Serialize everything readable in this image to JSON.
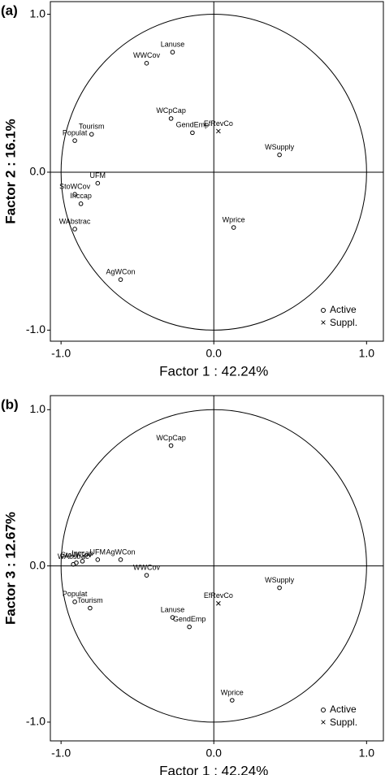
{
  "chart_data": [
    {
      "type": "scatter",
      "panel": "(a)",
      "x_label": "Factor 1 : 42.24%",
      "y_label": "Factor 2 : 16.1%",
      "xlim": [
        -1.07,
        1.11
      ],
      "ylim": [
        -1.07,
        1.08
      ],
      "xticks": [
        {
          "value": -1,
          "label": "-1.0"
        },
        {
          "value": 0,
          "label": "0.0"
        },
        {
          "value": 1,
          "label": "1.0"
        }
      ],
      "yticks": [
        {
          "value": -1,
          "label": "-1.0"
        },
        {
          "value": 0,
          "label": "0.0"
        },
        {
          "value": 1,
          "label": "1.0"
        }
      ],
      "series": [
        {
          "name": "Active",
          "marker": "o",
          "color": "#000000",
          "labels": [
            "Lanuse",
            "WWCov",
            "WCpCap",
            "GendEmp",
            "WSupply",
            "Tourism",
            "Populat",
            "UFM",
            "StoWCov",
            "Inccap",
            "WAbstrac",
            "Wprice",
            "AgWCon"
          ],
          "x": [
            -0.27,
            -0.44,
            -0.28,
            -0.14,
            0.43,
            -0.8,
            -0.91,
            -0.76,
            -0.91,
            -0.87,
            -0.91,
            0.13,
            -0.61
          ],
          "y": [
            0.76,
            0.69,
            0.34,
            0.25,
            0.11,
            0.24,
            0.2,
            -0.07,
            -0.14,
            -0.2,
            -0.36,
            -0.35,
            -0.68
          ]
        },
        {
          "name": "Suppl.",
          "marker": "x",
          "color": "#000000",
          "labels": [
            "EfRevCo"
          ],
          "x": [
            0.03
          ],
          "y": [
            0.26
          ]
        }
      ]
    },
    {
      "type": "scatter",
      "panel": "(b)",
      "x_label": "Factor 1 : 42.24%",
      "y_label": "Factor 3 : 12.67%",
      "xlim": [
        -1.07,
        1.11
      ],
      "ylim": [
        -1.12,
        1.09
      ],
      "xticks": [
        {
          "value": -1,
          "label": "-1.0"
        },
        {
          "value": 0,
          "label": "0.0"
        },
        {
          "value": 1,
          "label": "1.0"
        }
      ],
      "yticks": [
        {
          "value": -1,
          "label": "-1.0"
        },
        {
          "value": 0,
          "label": "0.0"
        },
        {
          "value": 1,
          "label": "1.0"
        }
      ],
      "series": [
        {
          "name": "Active",
          "marker": "o",
          "color": "#000000",
          "labels": [
            "WCpCap",
            "Inccap",
            "StoWCov",
            "UFM",
            "AgWCon",
            "WAbstrac",
            "WWCov",
            "Populat",
            "Tourism",
            "Lanuse",
            "GendEmp",
            "WSupply",
            "Wprice"
          ],
          "x": [
            -0.28,
            -0.86,
            -0.9,
            -0.76,
            -0.61,
            -0.92,
            -0.44,
            -0.91,
            -0.81,
            -0.27,
            -0.16,
            0.43,
            0.12
          ],
          "y": [
            0.77,
            0.03,
            0.02,
            0.04,
            0.04,
            0.01,
            -0.06,
            -0.23,
            -0.27,
            -0.33,
            -0.39,
            -0.14,
            -0.86
          ]
        },
        {
          "name": "Suppl.",
          "marker": "x",
          "color": "#000000",
          "labels": [
            "EfRevCo"
          ],
          "x": [
            0.03
          ],
          "y": [
            -0.24
          ]
        }
      ]
    }
  ]
}
